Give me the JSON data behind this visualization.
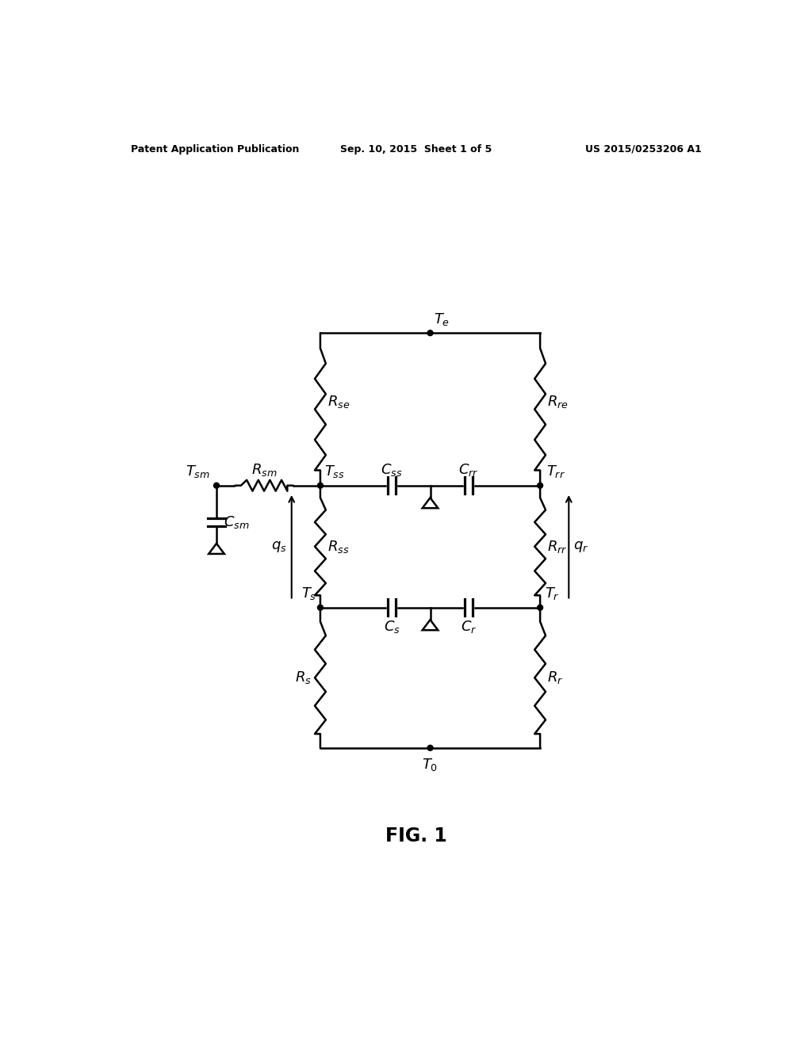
{
  "background_color": "#ffffff",
  "header_left": "Patent Application Publication",
  "header_center": "Sep. 10, 2015  Sheet 1 of 5",
  "header_right": "US 2015/0253206 A1",
  "fig_label": "FIG. 1",
  "label_fontsize": 13,
  "header_fontsize": 9,
  "figlabel_fontsize": 17
}
